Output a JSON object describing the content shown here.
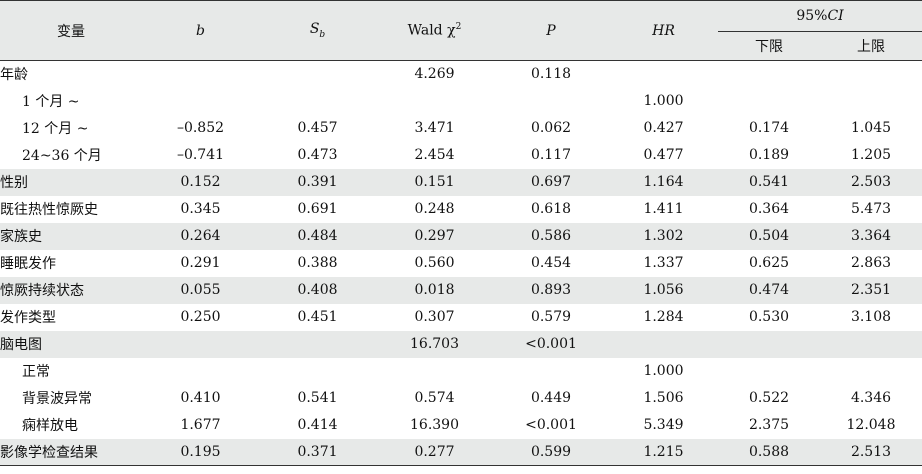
{
  "header": {
    "variable": "变量",
    "b": "b",
    "sb_main": "S",
    "sb_sub": "b",
    "wald": "Wald χ",
    "wald_sup": "2",
    "p": "P",
    "hr": "HR",
    "ci_prefix": "95%",
    "ci_suffix": "CI",
    "lower": "下限",
    "upper": "上限"
  },
  "rows": [
    {
      "label": "年龄",
      "indent": false,
      "shade": false,
      "b": "",
      "sb": "",
      "wald": "4.269",
      "p": "0.118",
      "hr": "",
      "lower": "",
      "upper": ""
    },
    {
      "label": "1 个月 ~",
      "indent": true,
      "shade": false,
      "b": "",
      "sb": "",
      "wald": "",
      "p": "",
      "hr": "1.000",
      "lower": "",
      "upper": ""
    },
    {
      "label": "12 个月 ~",
      "indent": true,
      "shade": false,
      "b": "–0.852",
      "sb": "0.457",
      "wald": "3.471",
      "p": "0.062",
      "hr": "0.427",
      "lower": "0.174",
      "upper": "1.045"
    },
    {
      "label": "24~36 个月",
      "indent": true,
      "shade": false,
      "b": "–0.741",
      "sb": "0.473",
      "wald": "2.454",
      "p": "0.117",
      "hr": "0.477",
      "lower": "0.189",
      "upper": "1.205"
    },
    {
      "label": "性别",
      "indent": false,
      "shade": true,
      "b": "0.152",
      "sb": "0.391",
      "wald": "0.151",
      "p": "0.697",
      "hr": "1.164",
      "lower": "0.541",
      "upper": "2.503"
    },
    {
      "label": "既往热性惊厥史",
      "indent": false,
      "shade": false,
      "b": "0.345",
      "sb": "0.691",
      "wald": "0.248",
      "p": "0.618",
      "hr": "1.411",
      "lower": "0.364",
      "upper": "5.473"
    },
    {
      "label": "家族史",
      "indent": false,
      "shade": true,
      "b": "0.264",
      "sb": "0.484",
      "wald": "0.297",
      "p": "0.586",
      "hr": "1.302",
      "lower": "0.504",
      "upper": "3.364"
    },
    {
      "label": "睡眠发作",
      "indent": false,
      "shade": false,
      "b": "0.291",
      "sb": "0.388",
      "wald": "0.560",
      "p": "0.454",
      "hr": "1.337",
      "lower": "0.625",
      "upper": "2.863"
    },
    {
      "label": "惊厥持续状态",
      "indent": false,
      "shade": true,
      "b": "0.055",
      "sb": "0.408",
      "wald": "0.018",
      "p": "0.893",
      "hr": "1.056",
      "lower": "0.474",
      "upper": "2.351"
    },
    {
      "label": "发作类型",
      "indent": false,
      "shade": false,
      "b": "0.250",
      "sb": "0.451",
      "wald": "0.307",
      "p": "0.579",
      "hr": "1.284",
      "lower": "0.530",
      "upper": "3.108"
    },
    {
      "label": "脑电图",
      "indent": false,
      "shade": true,
      "b": "",
      "sb": "",
      "wald": "16.703",
      "p": "<0.001",
      "hr": "",
      "lower": "",
      "upper": ""
    },
    {
      "label": "正常",
      "indent": true,
      "shade": false,
      "b": "",
      "sb": "",
      "wald": "",
      "p": "",
      "hr": "1.000",
      "lower": "",
      "upper": ""
    },
    {
      "label": "背景波异常",
      "indent": true,
      "shade": false,
      "b": "0.410",
      "sb": "0.541",
      "wald": "0.574",
      "p": "0.449",
      "hr": "1.506",
      "lower": "0.522",
      "upper": "4.346"
    },
    {
      "label": "痫样放电",
      "indent": true,
      "shade": false,
      "b": "1.677",
      "sb": "0.414",
      "wald": "16.390",
      "p": "<0.001",
      "hr": "5.349",
      "lower": "2.375",
      "upper": "12.048"
    },
    {
      "label": "影像学检查结果",
      "indent": false,
      "shade": true,
      "b": "0.195",
      "sb": "0.371",
      "wald": "0.277",
      "p": "0.599",
      "hr": "1.215",
      "lower": "0.588",
      "upper": "2.513"
    }
  ]
}
